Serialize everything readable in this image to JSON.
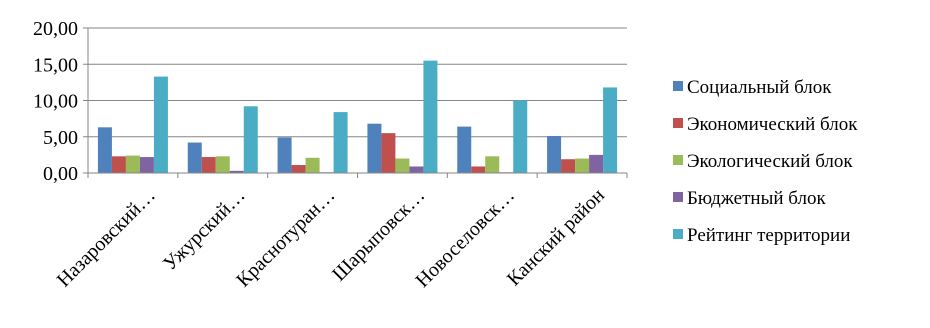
{
  "chart_data": {
    "type": "bar",
    "title": "",
    "xlabel": "",
    "ylabel": "",
    "ylim": [
      0,
      20
    ],
    "yticks": [
      "0,00",
      "5,00",
      "10,00",
      "15,00",
      "20,00"
    ],
    "grid": true,
    "legend_position": "right",
    "categories": [
      "Назаровский…",
      "Ужурский…",
      "Краснотуран…",
      "Шарыповск…",
      "Новоселовск…",
      "Канский район"
    ],
    "series": [
      {
        "name": "Социальный блок",
        "color": "#4F81BD",
        "values": [
          6.3,
          4.2,
          4.9,
          6.8,
          6.4,
          5.1
        ]
      },
      {
        "name": "Экономический блок",
        "color": "#C0504D",
        "values": [
          2.3,
          2.2,
          1.1,
          5.5,
          0.9,
          1.9
        ]
      },
      {
        "name": "Экологический блок",
        "color": "#9BBB59",
        "values": [
          2.4,
          2.3,
          2.1,
          2.0,
          2.3,
          2.0
        ]
      },
      {
        "name": "Бюджетный блок",
        "color": "#8064A2",
        "values": [
          2.2,
          0.3,
          0.1,
          0.9,
          0.1,
          2.5
        ]
      },
      {
        "name": "Рейтинг территории",
        "color": "#4BACC6",
        "values": [
          13.3,
          9.2,
          8.4,
          15.5,
          10.0,
          11.8
        ]
      }
    ]
  }
}
